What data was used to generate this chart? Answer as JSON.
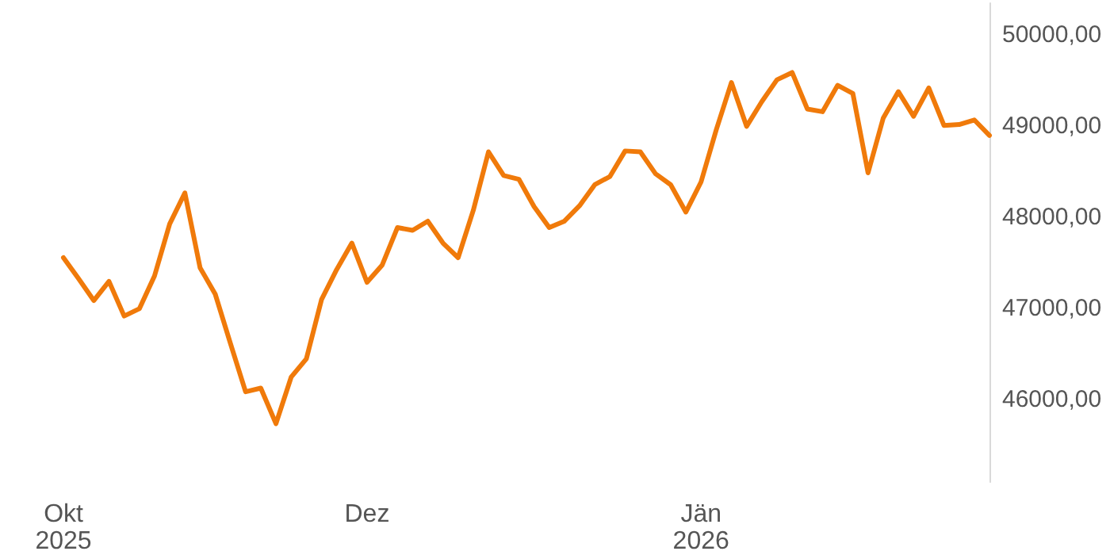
{
  "chart_data": {
    "type": "line",
    "categories": [
      "Okt\n2025",
      null,
      null,
      null,
      null,
      null,
      null,
      null,
      null,
      null,
      null,
      null,
      null,
      null,
      null,
      null,
      null,
      null,
      null,
      null,
      "Dez",
      null,
      null,
      null,
      null,
      null,
      null,
      null,
      null,
      null,
      null,
      null,
      null,
      null,
      null,
      null,
      null,
      null,
      null,
      null,
      null,
      null,
      "Jän\n2026",
      null,
      null,
      null,
      null,
      null,
      null,
      null,
      null,
      null,
      null,
      null,
      null,
      null,
      null,
      null,
      null,
      null,
      null,
      null
    ],
    "series": [
      {
        "color": "#f07a0a",
        "values": [
          47560,
          47330,
          47090,
          47300,
          46920,
          47000,
          47360,
          47930,
          48270,
          47450,
          47160,
          46620,
          46090,
          46130,
          45740,
          46250,
          46450,
          47100,
          47430,
          47720,
          47290,
          47480,
          47890,
          47860,
          47960,
          47720,
          47560,
          48080,
          48720,
          48460,
          48420,
          48120,
          47890,
          47960,
          48130,
          48360,
          48450,
          48730,
          48720,
          48480,
          48360,
          48060,
          48390,
          48960,
          49480,
          49000,
          49270,
          49510,
          49590,
          49190,
          49160,
          49450,
          49360,
          48490,
          49090,
          49380,
          49110,
          49420,
          49010,
          49020,
          49070,
          48900
        ]
      }
    ],
    "ylim": [
      45100,
      50350
    ],
    "yticks": [
      {
        "value": 46000,
        "label": "46000,00"
      },
      {
        "value": 47000,
        "label": "47000,00"
      },
      {
        "value": 48000,
        "label": "48000,00"
      },
      {
        "value": 49000,
        "label": "49000,00"
      },
      {
        "value": 50000,
        "label": "50000,00"
      }
    ],
    "grid": false,
    "marker": "none",
    "line_style": "solid"
  }
}
